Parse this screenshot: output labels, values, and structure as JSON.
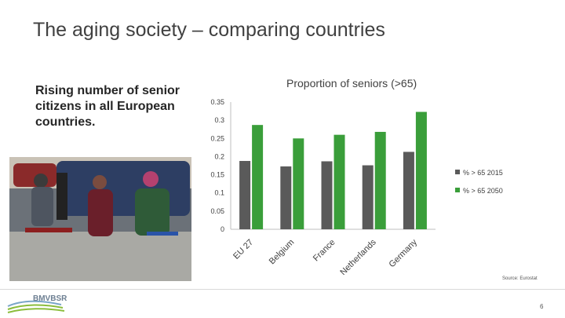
{
  "slide": {
    "title": "The aging society – comparing countries",
    "subtitle": "Rising number of senior citizens in all European countries.",
    "source": "Source: Eurostat",
    "page_number": "6",
    "logo_text": "BMVBSR"
  },
  "colors": {
    "series_2015": "#5a5a5a",
    "series_2050": "#3a9e3a"
  },
  "chart_data": {
    "type": "bar",
    "title": "Proportion of seniors (>65)",
    "categories": [
      "EU 27",
      "Belgium",
      "France",
      "Netherlands",
      "Germany"
    ],
    "series": [
      {
        "name": "% > 65 2015",
        "values": [
          0.188,
          0.173,
          0.187,
          0.176,
          0.213
        ]
      },
      {
        "name": "% > 65 2050",
        "values": [
          0.287,
          0.25,
          0.26,
          0.268,
          0.323
        ]
      }
    ],
    "yticks": [
      "0",
      "0.05",
      "0.1",
      "0.15",
      "0.2",
      "0.25",
      "0.3",
      "0.35"
    ],
    "ylim": [
      0,
      0.35
    ],
    "grid": false,
    "legend": "right"
  }
}
